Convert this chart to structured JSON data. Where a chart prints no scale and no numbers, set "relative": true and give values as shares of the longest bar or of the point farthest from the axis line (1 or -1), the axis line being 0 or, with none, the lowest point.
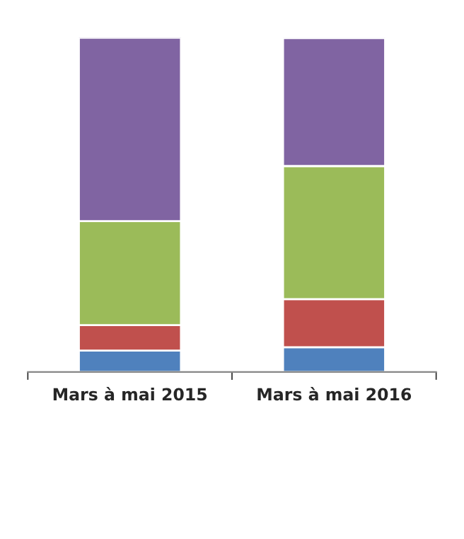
{
  "chart_data": {
    "type": "bar",
    "stacked": true,
    "relative": true,
    "categories": [
      "Mars à mai 2015",
      "Mars à mai 2016"
    ],
    "series": [
      {
        "color": "#4f81bd",
        "values": [
          0.064,
          0.074
        ]
      },
      {
        "color": "#c0504d",
        "values": [
          0.076,
          0.144
        ]
      },
      {
        "color": "#9bbb59",
        "values": [
          0.311,
          0.398
        ]
      },
      {
        "color": "#8064a2",
        "values": [
          0.549,
          0.383
        ]
      }
    ],
    "grid": false,
    "legend": false
  }
}
